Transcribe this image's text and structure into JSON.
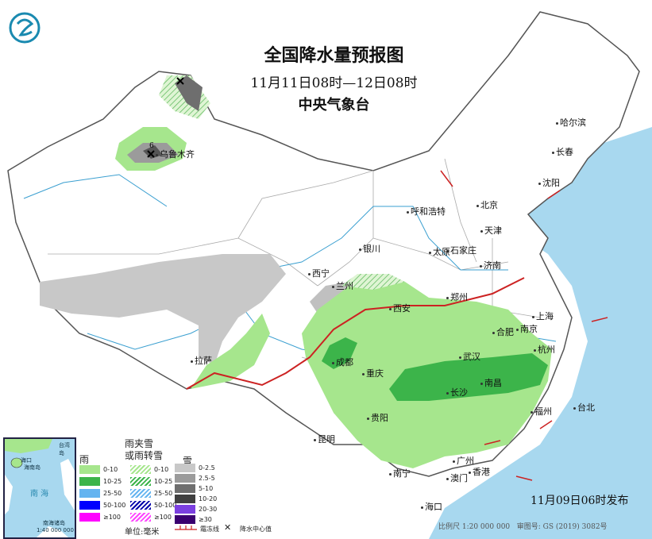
{
  "header": {
    "title": "全国降水量预报图",
    "period": "11月11日08时—12日08时",
    "agency": "中央气象台"
  },
  "colors": {
    "sea": "#a8d8ef",
    "land": "#ffffff",
    "rain_0_10": "#a6e68d",
    "rain_10_25": "#3cb44a",
    "snow_0_2_5": "#c8c8c8",
    "snow_2_5_5": "#9b9b9b",
    "snow_5_10": "#6e6e6e",
    "front": "#cc2222"
  },
  "cities": [
    {
      "name": "乌鲁木齐"
    },
    {
      "name": "拉萨"
    },
    {
      "name": "西宁"
    },
    {
      "name": "兰州"
    },
    {
      "name": "银川"
    },
    {
      "name": "呼和浩特"
    },
    {
      "name": "北京"
    },
    {
      "name": "天津"
    },
    {
      "name": "石家庄"
    },
    {
      "name": "太原"
    },
    {
      "name": "济南"
    },
    {
      "name": "郑州"
    },
    {
      "name": "西安"
    },
    {
      "name": "成都"
    },
    {
      "name": "重庆"
    },
    {
      "name": "贵阳"
    },
    {
      "name": "昆明"
    },
    {
      "name": "南宁"
    },
    {
      "name": "广州"
    },
    {
      "name": "澳门"
    },
    {
      "name": "香港"
    },
    {
      "name": "海口"
    },
    {
      "name": "长沙"
    },
    {
      "name": "武汉"
    },
    {
      "name": "南昌"
    },
    {
      "name": "合肥"
    },
    {
      "name": "南京"
    },
    {
      "name": "上海"
    },
    {
      "name": "杭州"
    },
    {
      "name": "福州"
    },
    {
      "name": "台北"
    },
    {
      "name": "哈尔滨"
    },
    {
      "name": "长春"
    },
    {
      "name": "沈阳"
    }
  ],
  "precip_center_value": "6",
  "inset": {
    "sea_label": "南 海",
    "islands_label": "南海诸岛",
    "scale": "1:40 000 000",
    "hainan": "海南岛",
    "haikou": "海口",
    "taiwan": "台湾岛"
  },
  "sea_labels": {
    "south_sea": "南",
    "south_sea2": "海",
    "hainan_island": "海南岛"
  },
  "legend": {
    "rain": {
      "title": "雨",
      "items": [
        "0-10",
        "10-25",
        "25-50",
        "50-100",
        "≥100"
      ],
      "colors": [
        "#a6e68d",
        "#3cb44a",
        "#64b4f0",
        "#0000ff",
        "#ff00ff"
      ]
    },
    "mixed": {
      "title_line1": "雨夹雪",
      "title_line2": "或雨转雪",
      "items": [
        "0-10",
        "10-25",
        "25-50",
        "50-100",
        "≥100"
      ],
      "colors": [
        "#a6e68d",
        "#3cb44a",
        "#64b4f0",
        "#0000aa",
        "#ff44ff"
      ]
    },
    "snow": {
      "title": "雪",
      "items": [
        "0-2.5",
        "2.5-5",
        "5-10",
        "10-20",
        "20-30",
        "≥30"
      ],
      "colors": [
        "#c8c8c8",
        "#9b9b9b",
        "#6e6e6e",
        "#404040",
        "#7b3fe0",
        "#3a0070"
      ]
    },
    "unit": "单位:毫米",
    "front_label": "霜冻线",
    "center_label": "降水中心值"
  },
  "footer": {
    "issued": "11月09日06时发布",
    "scale": "比例尺 1:20 000 000",
    "map_no": "审图号: GS (2019) 3082号"
  }
}
